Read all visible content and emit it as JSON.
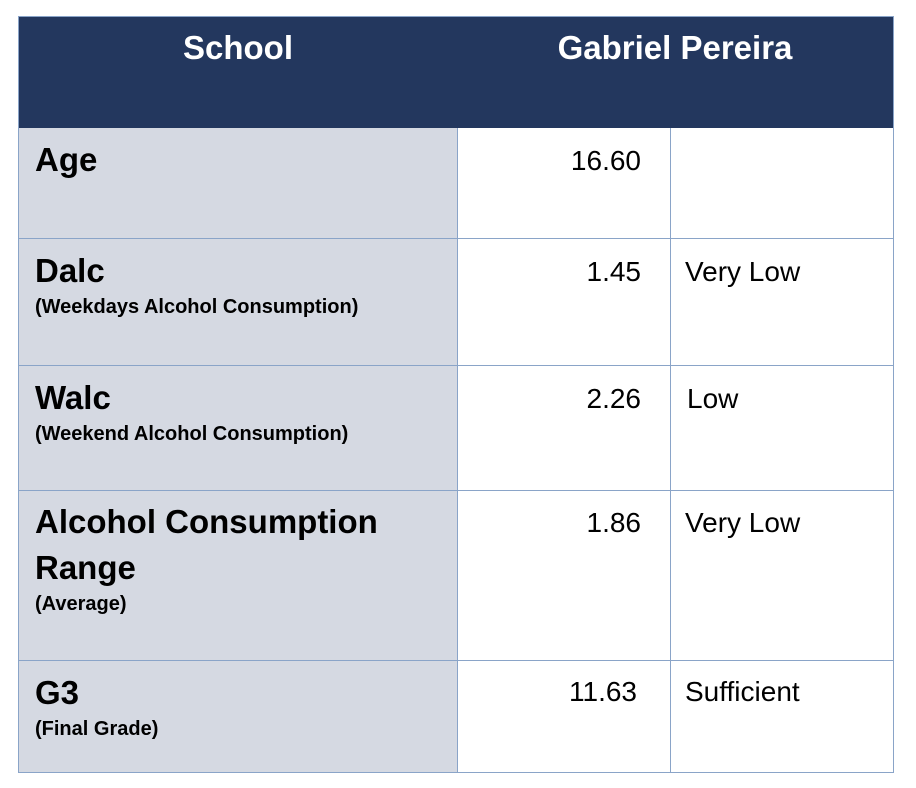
{
  "header": {
    "col1": "School",
    "col2": "Gabriel Pereira"
  },
  "rows": [
    {
      "title": "Age",
      "subtitle": "",
      "value": "16.60",
      "level": ""
    },
    {
      "title": "Dalc",
      "subtitle": "(Weekdays Alcohol Consumption)",
      "value": "1.45",
      "level": "Very Low"
    },
    {
      "title": "Walc",
      "subtitle": "(Weekend Alcohol Consumption)",
      "value": "2.26",
      "level": "Low"
    },
    {
      "title": "Alcohol Consumption Range",
      "subtitle": "(Average)",
      "value": "1.86",
      "level": "Very Low"
    },
    {
      "title": "G3",
      "subtitle": "(Final Grade)",
      "value": "11.63",
      "level": "Sufficient"
    }
  ],
  "colors": {
    "header_bg": "#23375e",
    "header_text": "#ffffff",
    "label_bg": "#d5d9e2",
    "border": "#8aa4c8"
  }
}
